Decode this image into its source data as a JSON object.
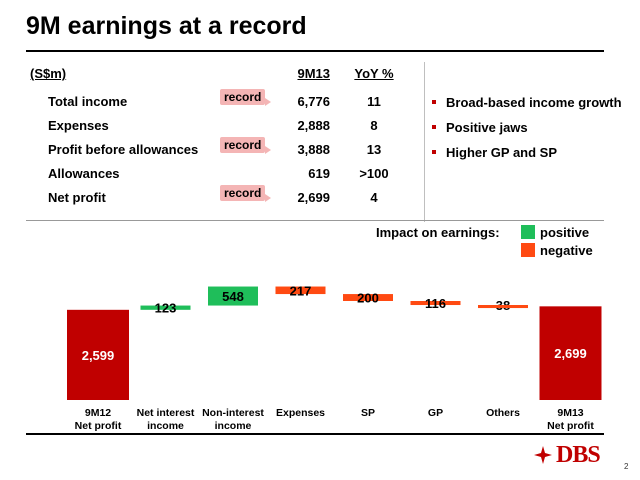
{
  "title": "9M earnings at a record",
  "table": {
    "unit_header": "(S$m)",
    "col1_header": "9M13",
    "col2_header": "YoY %",
    "rows": [
      {
        "label": "Total income",
        "value": "6,776",
        "yoy": "11",
        "badge": "record"
      },
      {
        "label": "Expenses",
        "value": "2,888",
        "yoy": "8",
        "badge": ""
      },
      {
        "label": "Profit before allowances",
        "value": "3,888",
        "yoy": "13",
        "badge": "record"
      },
      {
        "label": "Allowances",
        "value": "619",
        "yoy": ">100",
        "badge": ""
      },
      {
        "label": "Net profit",
        "value": "2,699",
        "yoy": "4",
        "badge": "record"
      }
    ]
  },
  "bullets": [
    "Broad-based income growth",
    "Positive jaws",
    "Higher GP and SP"
  ],
  "legend": {
    "title": "Impact on earnings:",
    "positive": "positive",
    "negative": "negative"
  },
  "colors": {
    "total": "#c00000",
    "positive": "#1fbe5a",
    "negative": "#ff4a12",
    "badge": "#f4b5b5"
  },
  "chart_data": {
    "type": "bar",
    "subtype": "waterfall",
    "categories": [
      "9M12\nNet profit",
      "Net interest\nincome",
      "Non-interest\nincome",
      "Expenses",
      "SP",
      "GP",
      "Others",
      "9M13\nNet profit"
    ],
    "values": [
      2599,
      123,
      548,
      -217,
      -200,
      -116,
      -38,
      2699
    ],
    "labels": [
      "2,599",
      "123",
      "548",
      "217",
      "200",
      "116",
      "38",
      "2,699"
    ],
    "kinds": [
      "total",
      "positive",
      "positive",
      "negative",
      "negative",
      "negative",
      "negative",
      "total"
    ]
  },
  "footer": {
    "logo_text": "DBS",
    "page_number": "2"
  }
}
